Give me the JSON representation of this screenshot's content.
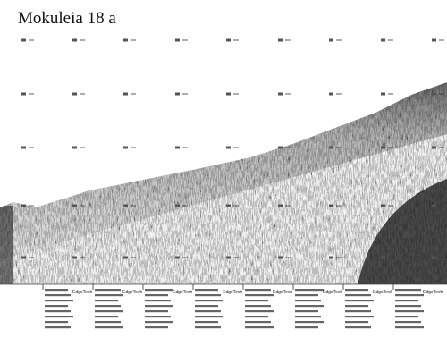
{
  "header": {
    "title": "Mokuleia 18 a"
  },
  "annotation_blocks": [
    {
      "brand": "EdgeTech"
    },
    {
      "brand": "EdgeTech"
    },
    {
      "brand": "EdgeTech"
    },
    {
      "brand": "EdgeTech"
    },
    {
      "brand": "EdgeTech"
    },
    {
      "brand": "EdgeTech"
    },
    {
      "brand": "EdgeTech"
    },
    {
      "brand": "EdgeTech"
    }
  ]
}
